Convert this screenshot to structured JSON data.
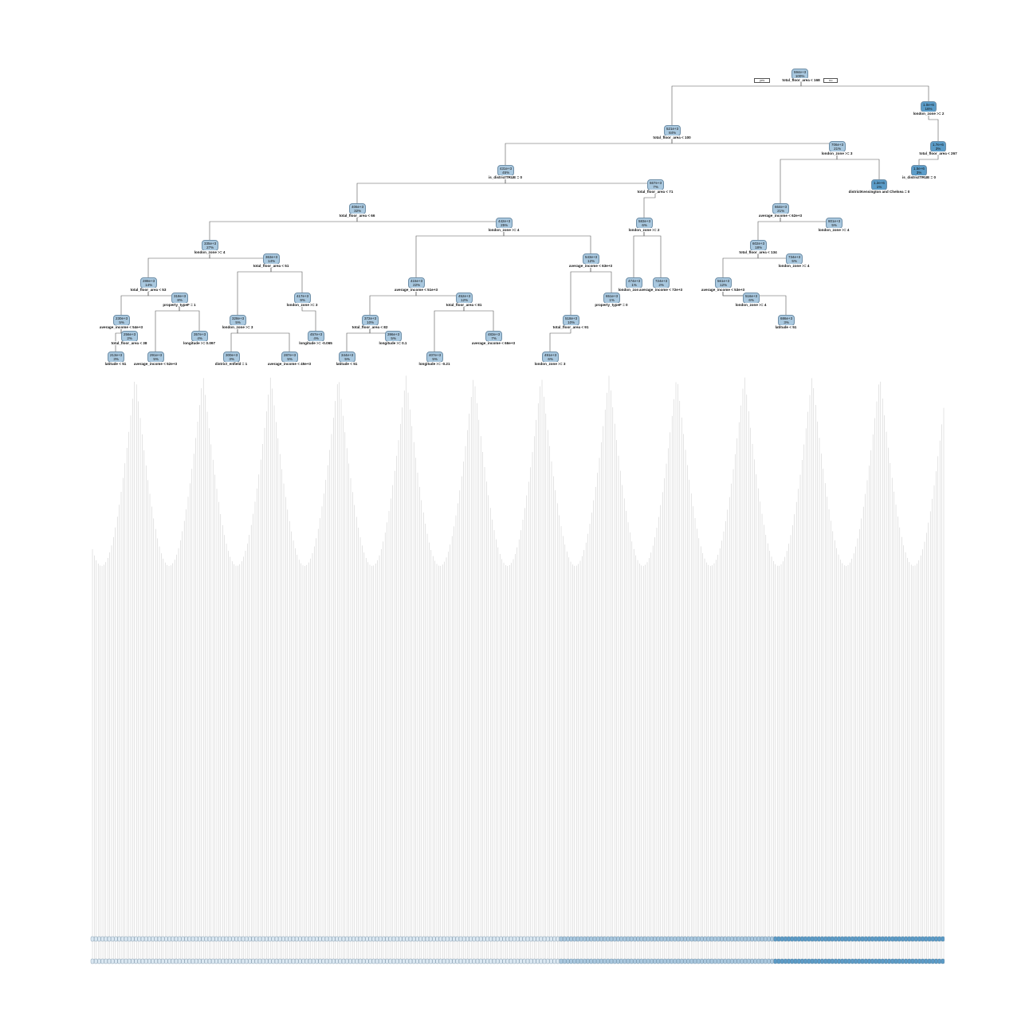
{
  "diagram": {
    "type": "regression-tree",
    "branch_labels": {
      "yes": "yes",
      "no": "no"
    },
    "colors": {
      "node_light": "#dbe8f2",
      "node_mid": "#a9c8df",
      "node_dark": "#5b9cc8",
      "edge": "#555555",
      "leaf_line": "#c8c8c8"
    },
    "root": {
      "value": "594e+3",
      "pct": "100%",
      "split": "total_floor_area < 168"
    },
    "nodes": [
      {
        "id": "n2",
        "value": "521e+3",
        "pct": "84%",
        "split": "total_floor_area < 100"
      },
      {
        "id": "n3",
        "value": "1.0e+6",
        "pct": "16%",
        "split": "london_zone >= 2"
      },
      {
        "id": "n4",
        "value": "431e+3",
        "pct": "45%",
        "split": "is_districtTRUE = 0"
      },
      {
        "id": "n5",
        "value": "706e+3",
        "pct": "21%",
        "split": "london_zone >= 3"
      },
      {
        "id": "n6",
        "value": "1.7e+6",
        "pct": "3%",
        "split": "total_floor_area < 267"
      },
      {
        "id": "n8",
        "value": "406e+3",
        "pct": "32%",
        "split": "total_floor_area < 66"
      },
      {
        "id": "n9",
        "value": "667e+3",
        "pct": "7%",
        "split": "total_floor_area < 71"
      },
      {
        "id": "n10",
        "value": "664e+3",
        "pct": "21%",
        "split": "average_income < 62e+3"
      },
      {
        "id": "n11",
        "value": "1.2e+6",
        "pct": "1%",
        "split": "districtKensington and Chelsea = 0"
      },
      {
        "id": "n12",
        "value": "1.5e+6",
        "pct": "3%",
        "split": "is_districtTRUE = 0"
      },
      {
        "id": "n16",
        "value": "335e+3",
        "pct": "27%",
        "split": "london_zone >= 4"
      },
      {
        "id": "n17",
        "value": "442e+3",
        "pct": "25%",
        "split": "london_zone >= 4"
      },
      {
        "id": "n18",
        "value": "583e+3",
        "pct": "6%",
        "split": "london_zone >= 2"
      },
      {
        "id": "n20",
        "value": "602e+3",
        "pct": "18%",
        "split": "total_floor_area < 134"
      },
      {
        "id": "n21",
        "value": "801e+3",
        "pct": "5%",
        "split": "london_zone >= 4"
      },
      {
        "id": "n32",
        "value": "288e+3",
        "pct": "14%",
        "split": "total_floor_area < 53"
      },
      {
        "id": "n33",
        "value": "363e+3",
        "pct": "14%",
        "split": "total_floor_area < 51"
      },
      {
        "id": "n34",
        "value": "415e+3",
        "pct": "22%",
        "split": "average_income < 51e+3"
      },
      {
        "id": "n35",
        "value": "543e+3",
        "pct": "12%",
        "split": "average_income < 63e+3"
      },
      {
        "id": "n36",
        "value": "474e+3",
        "pct": "1%",
        "split": "london_zone >= 3"
      },
      {
        "id": "n37",
        "value": "724e+3",
        "pct": "2%",
        "split": "average_income < 72e+3"
      },
      {
        "id": "n40",
        "value": "561e+3",
        "pct": "12%",
        "split": "average_income < 53e+3"
      },
      {
        "id": "n41",
        "value": "734e+3",
        "pct": "5%",
        "split": "london_zone >= 4"
      },
      {
        "id": "n64",
        "value": "230e+3",
        "pct": "5%",
        "split": "average_income < 54e+3"
      },
      {
        "id": "n65",
        "value": "318e+3",
        "pct": "8%",
        "split": "property_typeF = 1"
      },
      {
        "id": "n66",
        "value": "328e+3",
        "pct": "5%",
        "split": "london_zone >= 3"
      },
      {
        "id": "n67",
        "value": "417e+3",
        "pct": "9%",
        "split": "london_zone >= 3"
      },
      {
        "id": "n68",
        "value": "372e+3",
        "pct": "10%",
        "split": "total_floor_area < 82"
      },
      {
        "id": "n69",
        "value": "452e+3",
        "pct": "12%",
        "split": "total_floor_area < 81"
      },
      {
        "id": "n70",
        "value": "518e+3",
        "pct": "10%",
        "split": "total_floor_area < 91"
      },
      {
        "id": "n71",
        "value": "651e+3",
        "pct": "1%",
        "split": "property_typeF = 0"
      },
      {
        "id": "n80",
        "value": "516e+3",
        "pct": "6%",
        "split": "london_zone >= 4"
      },
      {
        "id": "n81",
        "value": "686e+3",
        "pct": "3%",
        "split": "latitude < 51"
      },
      {
        "id": "n128",
        "value": "213e+3",
        "pct": "3%",
        "split": "latitude < 51"
      },
      {
        "id": "n129",
        "value": "256e+3",
        "pct": "2%",
        "split": "total_floor_area < 38"
      },
      {
        "id": "n130",
        "value": "291e+3",
        "pct": "5%",
        "split": "average_income < 52e+3"
      },
      {
        "id": "n131",
        "value": "357e+3",
        "pct": "4%",
        "split": "longitude >= 0.097"
      },
      {
        "id": "n132",
        "value": "300e+3",
        "pct": "3%",
        "split": "district_enfield = 1"
      },
      {
        "id": "n133",
        "value": "287e+3",
        "pct": "5%",
        "split": "average_income < 45e+3"
      },
      {
        "id": "n134",
        "value": "457e+3",
        "pct": "4%",
        "split": "longitude >= -0.065"
      },
      {
        "id": "n136",
        "value": "344e+3",
        "pct": "5%",
        "split": "latitude < 51"
      },
      {
        "id": "n137",
        "value": "396e+3",
        "pct": "5%",
        "split": "longitude >= 0.1"
      },
      {
        "id": "n138",
        "value": "407e+3",
        "pct": "5%",
        "split": "longitude >= -0.21"
      },
      {
        "id": "n139",
        "value": "483e+3",
        "pct": "7%",
        "split": "average_income < 66e+3"
      },
      {
        "id": "n140",
        "value": "491e+3",
        "pct": "6%",
        "split": "london_zone >= 3"
      }
    ]
  }
}
